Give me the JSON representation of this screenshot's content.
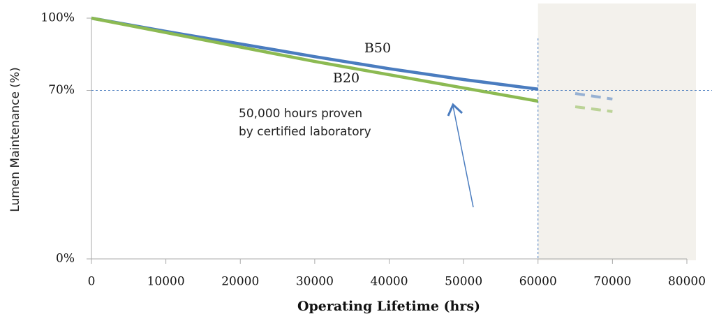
{
  "chart_data": {
    "type": "line",
    "y_label": "Lumen Maintenance (%)",
    "x_label": "Operating Lifetime (hrs)",
    "xlim": [
      0,
      80000
    ],
    "xticks": [
      0,
      10000,
      20000,
      30000,
      40000,
      50000,
      60000,
      70000,
      80000
    ],
    "ylim": [
      0,
      100
    ],
    "yticks": [
      {
        "value": 0,
        "label": "0%"
      },
      {
        "value": 70,
        "label": "70%"
      },
      {
        "value": 100,
        "label": "100%"
      }
    ],
    "reference_y": 70,
    "shaded_from": 60000,
    "x": [
      0,
      10000,
      20000,
      30000,
      40000,
      50000,
      60000
    ],
    "series": [
      {
        "name": "B50",
        "color": "#4a7cbf",
        "values": [
          100,
          94.5,
          89.3,
          84,
          79,
          74.5,
          70.5
        ],
        "projected": {
          "x": [
            65000,
            70000
          ],
          "values": [
            68.7,
            66.4
          ]
        }
      },
      {
        "name": "B20",
        "color": "#8cba52",
        "values": [
          100,
          94,
          88,
          82,
          76.5,
          71,
          65.5
        ],
        "projected": {
          "x": [
            65000,
            70000
          ],
          "values": [
            63.2,
            61.2
          ]
        }
      }
    ],
    "annotation": [
      "50,000 hours proven",
      "by certified laboratory"
    ]
  }
}
